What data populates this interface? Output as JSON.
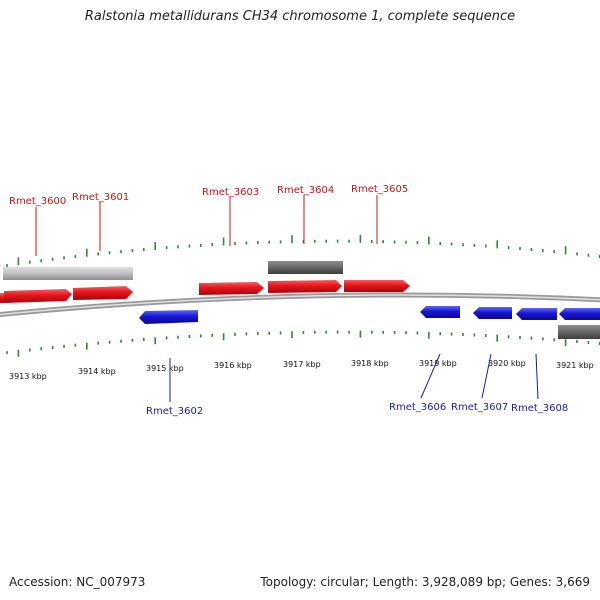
{
  "title": "Ralstonia metallidurans CH34 chromosome 1, complete sequence",
  "footer": {
    "accession": "Accession: NC_007973",
    "stats": "Topology: circular; Length: 3,928,089 bp; Genes: 3,669"
  },
  "colors": {
    "forward": "#e8141c",
    "reverse": "#1a14d6",
    "grey_dark": "#6b6b6b",
    "grey_light": "#c4c4c4",
    "tick": "#2d8a2d",
    "backbone": "#8a8a8a",
    "label_forward": "#c81414",
    "label_reverse": "#1a1aa8"
  },
  "kbp_labels": [
    "3913 kbp",
    "3914 kbp",
    "3915 kbp",
    "3916 kbp",
    "3917 kbp",
    "3918 kbp",
    "3919 kbp",
    "3920 kbp",
    "3921 kbp"
  ],
  "gene_labels_top": [
    "Rmet_3600",
    "Rmet_3601",
    "Rmet_3603",
    "Rmet_3604",
    "Rmet_3605"
  ],
  "gene_labels_bottom": [
    "Rmet_3602",
    "Rmet_3606",
    "Rmet_3607",
    "Rmet_3608"
  ]
}
